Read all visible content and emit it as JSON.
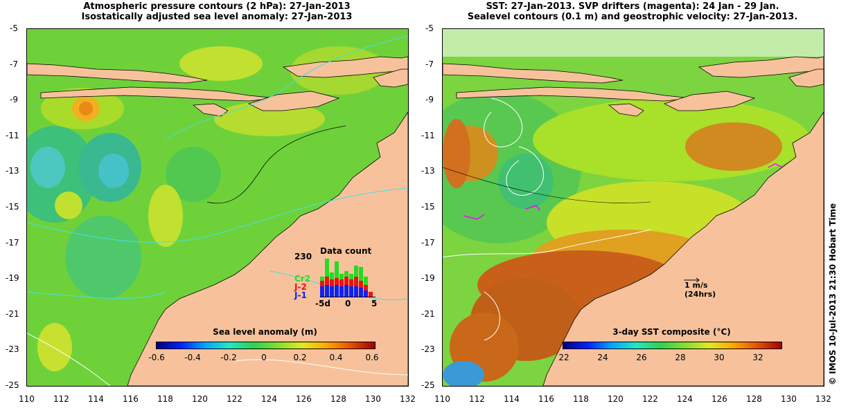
{
  "left_panel": {
    "title_line1": "Atmospheric pressure contours (2 hPa): 27-Jan-2013",
    "title_line2": "Isostatically adjusted sea level anomaly: 27-Jan-2013",
    "colorbar_title": "Sea level anomaly (m)",
    "colorbar_ticks": [
      "-0.6",
      "-0.4",
      "-0.2",
      "0",
      "0.2",
      "0.4",
      "0.6"
    ],
    "inset": {
      "title": "Data count",
      "ymax_label": "230",
      "x_ticks": [
        "-5d",
        "0",
        "5"
      ],
      "legend": [
        {
          "label": "Cr2",
          "color": "#22dd22"
        },
        {
          "label": "J-2",
          "color": "#ee1111"
        },
        {
          "label": "J-1",
          "color": "#1122ee"
        }
      ]
    }
  },
  "right_panel": {
    "title_line1": "SST: 27-Jan-2013. SVP drifters (magenta): 24 Jan - 29 Jan.",
    "title_line2": "Sealevel contours (0.1 m) and geostrophic velocity: 27-Jan-2013.",
    "colorbar_title": "3-day SST composite (°C)",
    "colorbar_ticks": [
      "22",
      "24",
      "26",
      "28",
      "30",
      "32"
    ],
    "scale_label_1": "1 m/s",
    "scale_label_2": "(24hrs)"
  },
  "axes": {
    "y_ticks": [
      "-5",
      "-7",
      "-9",
      "-11",
      "-13",
      "-15",
      "-17",
      "-19",
      "-21",
      "-23",
      "-25"
    ],
    "x_ticks": [
      "110",
      "112",
      "114",
      "116",
      "118",
      "120",
      "122",
      "124",
      "126",
      "128",
      "130",
      "132"
    ]
  },
  "credit": "© IMOS 10-Jul-2013 21:30 Hobart Time",
  "colors": {
    "land": "#f7c29b",
    "sla_base": "#6fd13a",
    "sst_base": "#a8e02a",
    "sst_hot": "#c8501a",
    "contour_cyan": "#40e0e8"
  }
}
